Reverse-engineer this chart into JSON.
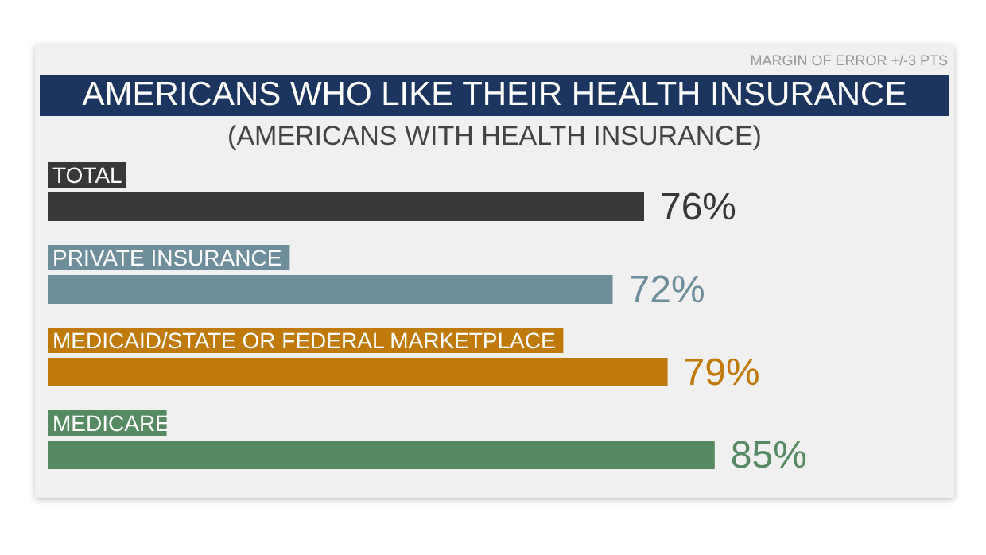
{
  "chart_data": {
    "type": "bar",
    "orientation": "horizontal",
    "title": "AMERICANS WHO LIKE THEIR HEALTH INSURANCE",
    "subtitle": "(AMERICANS WITH HEALTH INSURANCE)",
    "annotations": [
      "MARGIN OF ERROR +/-3 PTS"
    ],
    "categories": [
      "TOTAL",
      "PRIVATE INSURANCE",
      "MEDICAID/STATE OR FEDERAL MARKETPLACE",
      "MEDICARE"
    ],
    "values": [
      76,
      72,
      79,
      85
    ],
    "colors": [
      "#383838",
      "#6e8e9c",
      "#bf7a0b",
      "#568a63"
    ],
    "value_labels": [
      "76%",
      "72%",
      "79%",
      "85%"
    ]
  }
}
